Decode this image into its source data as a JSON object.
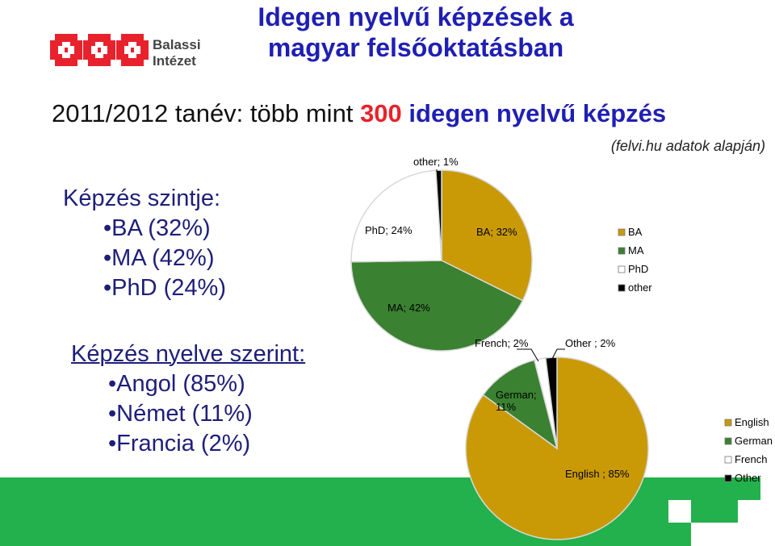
{
  "title_line1": "Idegen nyelvű képzések a",
  "title_line2": "magyar felsőoktatásban",
  "logo": {
    "line1": "Balassi",
    "line2": "Intézet",
    "color": "#e8222c"
  },
  "subtitle": {
    "pre": "2011/2012 tanév: több mint",
    "highlight": "300",
    "post": "idegen nyelvű képzés"
  },
  "source_note": "(felvi.hu adatok alapján)",
  "levels_block": {
    "heading": "Képzés szintje:",
    "items": [
      "BA (32%)",
      "MA (42%)",
      "PhD (24%)"
    ]
  },
  "languages_block": {
    "heading": "Képzés nyelve szerint:",
    "items": [
      "Angol (85%)",
      "Német (11%)",
      "Francia (2%)"
    ]
  },
  "chart_data": [
    {
      "type": "pie",
      "title": "",
      "slices": [
        {
          "name": "BA",
          "value": 32,
          "label": "BA; 32%",
          "color": "#c99a06"
        },
        {
          "name": "MA",
          "value": 42,
          "label": "MA; 42%",
          "color": "#3a8131"
        },
        {
          "name": "PhD",
          "value": 24,
          "label": "PhD; 24%",
          "color": "#ffffff"
        },
        {
          "name": "other",
          "value": 1,
          "label": "other; 1%",
          "color": "#000000"
        }
      ],
      "legend": [
        "BA",
        "MA",
        "PhD",
        "other"
      ],
      "legend_position": "right"
    },
    {
      "type": "pie",
      "title": "",
      "slices": [
        {
          "name": "English",
          "value": 85,
          "label": "English ; 85%",
          "color": "#c99a06"
        },
        {
          "name": "German",
          "value": 11,
          "label": "German; 11%",
          "color": "#3a8131"
        },
        {
          "name": "French",
          "value": 2,
          "label": "French; 2%",
          "color": "#ffffff"
        },
        {
          "name": "Other",
          "value": 2,
          "label": "Other ; 2%",
          "color": "#000000"
        }
      ],
      "legend": [
        "English",
        "German",
        "French",
        "Other"
      ],
      "legend_position": "right"
    }
  ],
  "colors": {
    "accent_green": "#22b14c",
    "title_blue": "#1f1fb4",
    "highlight_red": "#e8222c"
  }
}
